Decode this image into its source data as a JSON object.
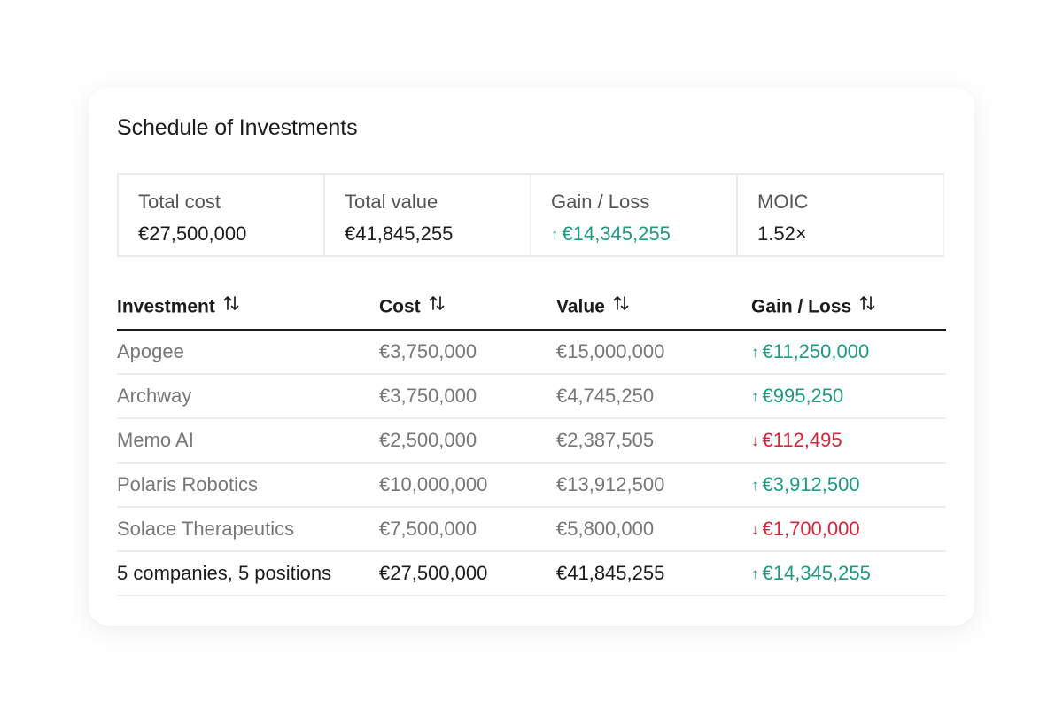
{
  "title": "Schedule of Investments",
  "summary": [
    {
      "label": "Total cost",
      "value": "€27,500,000",
      "trend": "none"
    },
    {
      "label": "Total value",
      "value": "€41,845,255",
      "trend": "none"
    },
    {
      "label": "Gain / Loss",
      "value": "€14,345,255",
      "trend": "up"
    },
    {
      "label": "MOIC",
      "value": "1.52×",
      "trend": "none"
    }
  ],
  "table": {
    "columns": [
      "Investment",
      "Cost",
      "Value",
      "Gain / Loss"
    ],
    "rows": [
      {
        "investment": "Apogee",
        "cost": "€3,750,000",
        "value": "€15,000,000",
        "gain": "€11,250,000",
        "trend": "up"
      },
      {
        "investment": "Archway",
        "cost": "€3,750,000",
        "value": "€4,745,250",
        "gain": "€995,250",
        "trend": "up"
      },
      {
        "investment": "Memo AI",
        "cost": "€2,500,000",
        "value": "€2,387,505",
        "gain": "€112,495",
        "trend": "down"
      },
      {
        "investment": "Polaris Robotics",
        "cost": "€10,000,000",
        "value": "€13,912,500",
        "gain": "€3,912,500",
        "trend": "up"
      },
      {
        "investment": "Solace Therapeutics",
        "cost": "€7,500,000",
        "value": "€5,800,000",
        "gain": "€1,700,000",
        "trend": "down"
      }
    ],
    "total": {
      "investment": "5 companies, 5 positions",
      "cost": "€27,500,000",
      "value": "€41,845,255",
      "gain": "€14,345,255",
      "trend": "up"
    }
  },
  "icons": {
    "sort": "sort-arrows-icon",
    "up": "arrow-up-icon",
    "down": "arrow-down-icon"
  },
  "colors": {
    "positive": "#1e9a84",
    "negative": "#d8233a",
    "muted_text": "#777777",
    "border": "#ebebeb"
  }
}
